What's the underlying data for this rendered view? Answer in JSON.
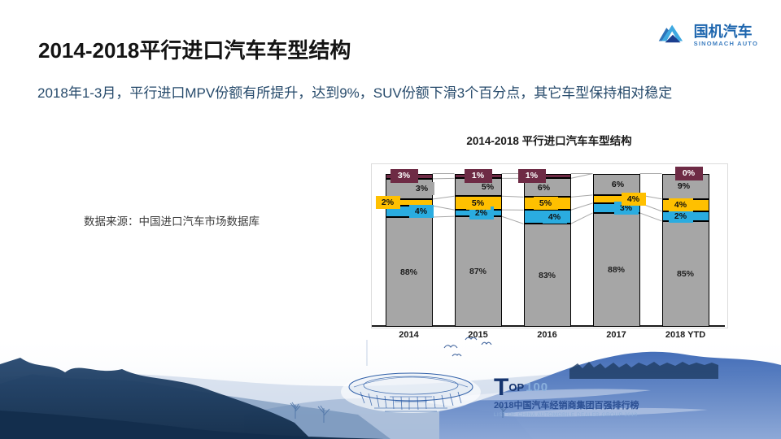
{
  "slide": {
    "title": "2014-2018平行进口汽车车型结构",
    "subtitle": "2018年1-3月，平行进口MPV份额有所提升，达到9%，SUV份额下滑3个百分点，其它车型保持相对稳定",
    "source_note": "数据来源：中国进口汽车市场数据库"
  },
  "logo": {
    "cn": "国机汽车",
    "en": "SINOMACH AUTO",
    "icon_colors": {
      "light_blue": "#3fa9e1",
      "mid_blue": "#2e73b8",
      "dark_blue": "#1b3e8f"
    }
  },
  "footer": {
    "top100_t": "T",
    "top100_op": "OP",
    "top100_num": "100",
    "cn_line": "2018中国汽车经销商集团百强排行榜",
    "en_line": "LIST OF CHINA AUTOMOBILE DEALER GROUP 2018"
  },
  "chart_data": {
    "type": "bar",
    "variant": "100%-stacked-column-with-series-lines",
    "title": "2014-2018 平行进口汽车车型结构",
    "categories": [
      "2014",
      "2015",
      "2016",
      "2017",
      "2018 YTD"
    ],
    "ylim": [
      0,
      100
    ],
    "legend": "none",
    "grid": "off",
    "unit": "%",
    "series": [
      {
        "name": "share-main-gray",
        "color": "#a6a6a6",
        "values_pct": [
          88,
          87,
          83,
          88,
          85
        ],
        "drawn_pct": [
          71.6,
          72.1,
          67.2,
          74.3,
          69.0
        ],
        "label": {
          "box": false,
          "text_color": "#1f1f1f",
          "dx": [
            0,
            0,
            0,
            0,
            0
          ]
        }
      },
      {
        "name": "share-blue",
        "color": "#2aace0",
        "values_pct": [
          4,
          2,
          4,
          3,
          2
        ],
        "drawn_pct": [
          7.4,
          4.2,
          9.0,
          6.4,
          6.4
        ],
        "label": {
          "box": true,
          "text_color": "#111111",
          "dx": [
            15,
            4,
            9,
            12,
            -6
          ]
        }
      },
      {
        "name": "share-yellow",
        "color": "#ffc000",
        "values_pct": [
          2,
          5,
          5,
          4,
          4
        ],
        "drawn_pct": [
          4.3,
          9.0,
          8.5,
          5.3,
          8.0
        ],
        "label": {
          "box": true,
          "text_color": "#111111",
          "dx": [
            -26,
            0,
            -2,
            21,
            -6
          ]
        }
      },
      {
        "name": "share-upper-gray",
        "color": "#a6a6a6",
        "values_pct": [
          3,
          5,
          6,
          6,
          9
        ],
        "drawn_pct": [
          13.3,
          11.6,
          12.2,
          14.0,
          16.6
        ],
        "label": {
          "box": true,
          "text_color": "#111111",
          "dx": [
            16,
            12,
            -4,
            2,
            -2
          ]
        }
      },
      {
        "name": "share-maroon",
        "color": "#6e2b45",
        "values_pct": [
          3,
          1,
          1,
          null,
          0
        ],
        "drawn_pct": [
          3.4,
          3.1,
          3.1,
          0,
          0
        ],
        "label": {
          "box": true,
          "text_color": "#ffffff",
          "dx": [
            -6,
            0,
            -19,
            0,
            4
          ]
        }
      }
    ],
    "connector_line_color": "#a8a8a8",
    "bar_border_color": "#000000",
    "axis_line_color": "#1a1a1a",
    "plot_border_color": "#dcdcdc"
  }
}
